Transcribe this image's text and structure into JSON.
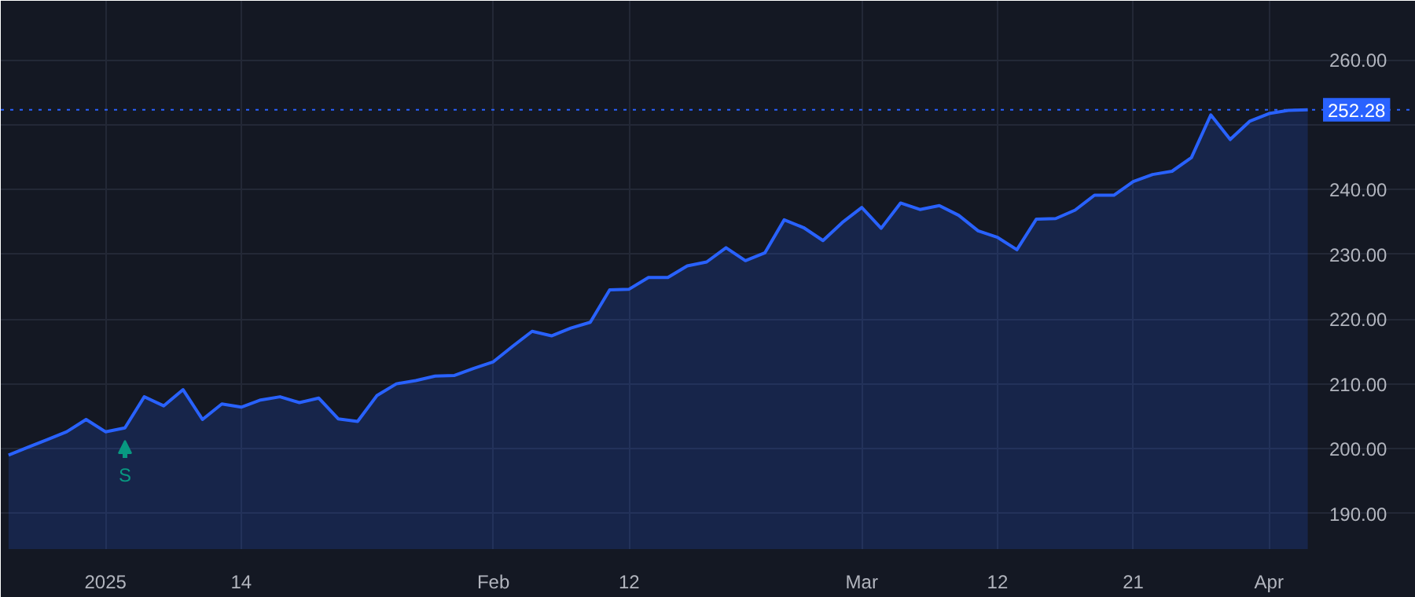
{
  "chart_data": {
    "type": "area",
    "categories": [
      null,
      null,
      null,
      null,
      null,
      "2025",
      null,
      null,
      null,
      null,
      null,
      null,
      "14",
      null,
      null,
      null,
      null,
      null,
      null,
      null,
      null,
      null,
      null,
      null,
      null,
      "Feb",
      null,
      null,
      null,
      null,
      null,
      null,
      "12",
      null,
      null,
      null,
      null,
      null,
      null,
      null,
      null,
      null,
      null,
      null,
      "Mar",
      null,
      null,
      null,
      null,
      null,
      null,
      "12",
      null,
      null,
      null,
      null,
      null,
      null,
      "21",
      null,
      null,
      null,
      null,
      null,
      null,
      "Apr",
      null,
      null
    ],
    "series": [
      {
        "color": "#2962ff",
        "values": [
          199.0,
          200.2,
          201.4,
          202.6,
          204.5,
          202.6,
          203.2,
          208.0,
          206.6,
          209.1,
          204.5,
          206.9,
          206.4,
          207.5,
          208.0,
          207.1,
          207.8,
          204.6,
          204.2,
          208.2,
          210.0,
          210.5,
          211.2,
          211.3,
          212.4,
          213.4,
          215.8,
          218.1,
          217.4,
          218.6,
          219.5,
          224.5,
          224.6,
          226.4,
          226.4,
          228.2,
          228.8,
          231.0,
          229.0,
          230.2,
          235.3,
          234.1,
          232.1,
          234.9,
          237.2,
          234.0,
          237.9,
          236.9,
          237.5,
          236.0,
          233.6,
          232.6,
          230.7,
          235.4,
          235.5,
          236.8,
          239.1,
          239.1,
          241.2,
          242.3,
          242.8,
          244.9,
          251.5,
          247.7,
          250.5,
          251.7,
          252.2,
          252.28
        ]
      }
    ],
    "ylim": [
      184.5,
      269.1
    ],
    "yticks": [
      {
        "value": 190,
        "label": "190.00"
      },
      {
        "value": 200,
        "label": "200.00"
      },
      {
        "value": 210,
        "label": "210.00"
      },
      {
        "value": 220,
        "label": "220.00"
      },
      {
        "value": 230,
        "label": "230.00"
      },
      {
        "value": 240,
        "label": "240.00"
      },
      {
        "value": 250,
        "label": null
      },
      {
        "value": 260,
        "label": "260.00"
      }
    ],
    "ref_lines": [
      {
        "axis": "y",
        "value": 252.28,
        "label": "252.28",
        "color": "#2962ff",
        "line_style": "dotted"
      }
    ],
    "annotations": [
      "S"
    ],
    "grid": true,
    "marker": "none",
    "line_style": "solid"
  }
}
